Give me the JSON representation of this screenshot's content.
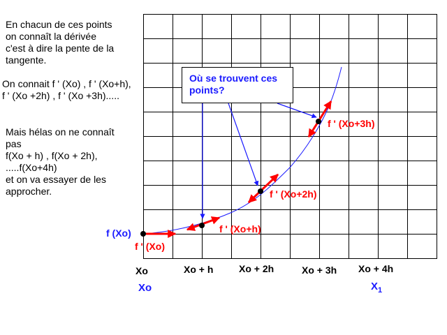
{
  "notes": {
    "para1": "En chacun de ces points\non connaît la dérivée\nc'est à dire la pente de la\ntangente.",
    "para2": "On connait f ' (Xo) , f ' (Xo+h),\nf ' (Xo +2h) , f ' (Xo +3h).....",
    "para3": "Mais hélas on ne connaît\npas\nf(Xo + h) , f(Xo + 2h),\n.....f(Xo+4h)\net on va essayer de les\napprocher."
  },
  "callout": "Où se trouvent ces\npoints?",
  "point_labels": {
    "f_xo": "f (Xo)",
    "fp_xo": "f ' (Xo)",
    "fp_xoh": "f ' (Xo+h)",
    "fp_xo2h": "f ' (Xo+2h)",
    "fp_xo3h": "f ' (Xo+3h)"
  },
  "x_axis": {
    "ticks": [
      "Xo",
      "Xo + h",
      "Xo + 2h",
      "Xo + 3h",
      "Xo + 4h"
    ],
    "start_label": "Xo",
    "end_label": "X",
    "end_subscript": "1"
  },
  "colors": {
    "tangent": "#ff0000",
    "curve": "#1a1aff",
    "arrow": "#1a1aff",
    "grid": "#000000",
    "point": "#000000"
  }
}
